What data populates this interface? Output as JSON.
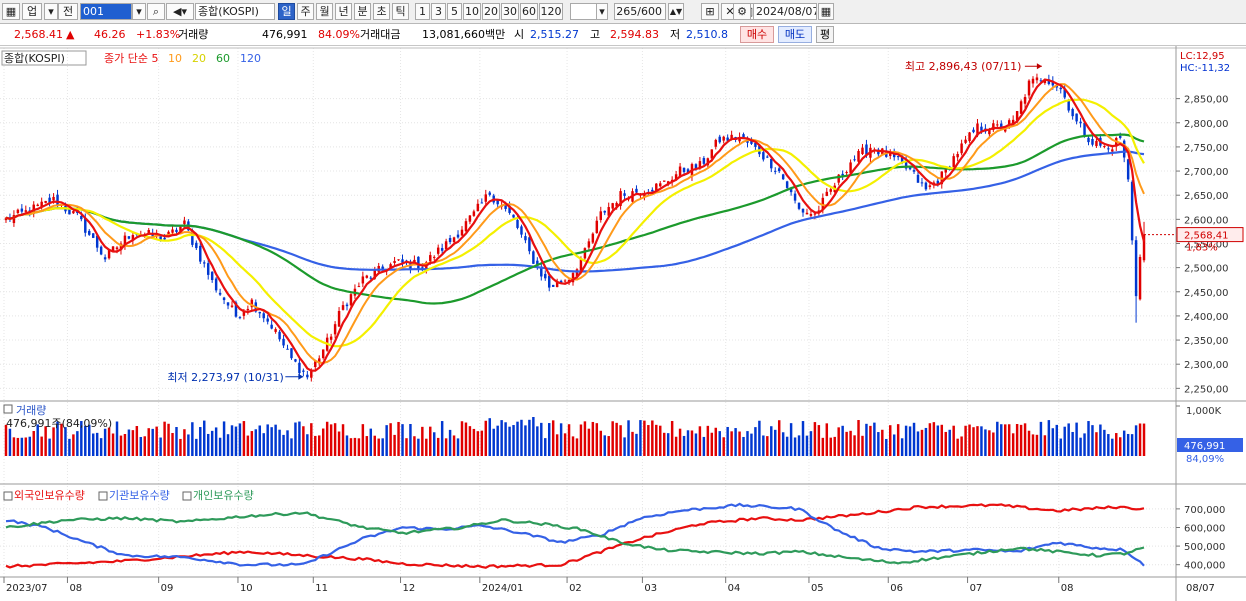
{
  "toolbar": {
    "market_label": "업",
    "prev_label": "전",
    "code_value": "001",
    "name_value": "종합(KOSPI)",
    "period_tabs": [
      {
        "label": "일",
        "selected": true
      },
      {
        "label": "주",
        "selected": false
      },
      {
        "label": "월",
        "selected": false
      },
      {
        "label": "년",
        "selected": false
      },
      {
        "label": "분",
        "selected": false
      },
      {
        "label": "초",
        "selected": false
      },
      {
        "label": "틱",
        "selected": false
      }
    ],
    "interval_buttons": [
      "1",
      "3",
      "5",
      "10",
      "20",
      "30",
      "60",
      "120"
    ],
    "count_value": "265/600",
    "date_value": "2024/08/07"
  },
  "quote": {
    "price": "2,568.41",
    "arrow": "▲",
    "change": "46.26",
    "change_pct": "+1.83%",
    "volume_label": "거래량",
    "volume": "476,991",
    "volume_ratio": "84.09%",
    "amount_label": "거래대금",
    "amount": "13,081,660백만",
    "open_label": "시",
    "open": "2,515.27",
    "high_label": "고",
    "high": "2,594.83",
    "low_label": "저",
    "low": "2,510.8",
    "buy_label": "매수",
    "sell_label": "매도",
    "eval_label": "평"
  },
  "colors": {
    "up": "#e00000",
    "down": "#0037d0",
    "ma5": "#e81010",
    "ma10": "#ff9a1a",
    "ma20": "#f4f000",
    "ma60": "#1c9a2c",
    "ma120": "#3561e6",
    "foreign": "#e81010",
    "institution": "#3561e6",
    "individual": "#2e9a5a"
  },
  "chart_data": [
    {
      "type": "candlestick",
      "name": "종합(KOSPI)",
      "legend": [
        {
          "label": "종합(KOSPI)"
        },
        {
          "label": "종가 단순 5",
          "color": "#e81010"
        },
        {
          "label": "10",
          "color": "#ff9a1a"
        },
        {
          "label": "20",
          "color": "#d6d200"
        },
        {
          "label": "60",
          "color": "#1c9a2c"
        },
        {
          "label": "120",
          "color": "#3561e6"
        }
      ],
      "ylim": [
        2230,
        2930
      ],
      "y_ticks": [
        "2,850,00",
        "2,800,00",
        "2,750,00",
        "2,700,00",
        "2,650,00",
        "2,600,00",
        "2,550,00",
        "2,500,00",
        "2,450,00",
        "2,400,00",
        "2,350,00",
        "2,300,00",
        "2,250,00"
      ],
      "y_tick_values": [
        2850,
        2800,
        2750,
        2700,
        2650,
        2600,
        2550,
        2500,
        2450,
        2400,
        2350,
        2300,
        2250
      ],
      "lc": "LC:12,95",
      "hc": "HC:-11,32",
      "last_price": "2,568,41",
      "last_change_pct": "1,83%",
      "high_annotation": "최고 2,896,43 (07/11)",
      "low_annotation": "최저 2,273,97 (10/31)",
      "high_value": 2896.43,
      "low_value": 2273.97,
      "anchors": [
        {
          "t": 0,
          "v": 2600
        },
        {
          "t": 5,
          "v": 2615
        },
        {
          "t": 12,
          "v": 2640
        },
        {
          "t": 18,
          "v": 2605
        },
        {
          "t": 25,
          "v": 2520
        },
        {
          "t": 32,
          "v": 2575
        },
        {
          "t": 40,
          "v": 2560
        },
        {
          "t": 45,
          "v": 2590
        },
        {
          "t": 52,
          "v": 2470
        },
        {
          "t": 58,
          "v": 2400
        },
        {
          "t": 62,
          "v": 2430
        },
        {
          "t": 67,
          "v": 2380
        },
        {
          "t": 72,
          "v": 2310
        },
        {
          "t": 76,
          "v": 2274
        },
        {
          "t": 81,
          "v": 2345
        },
        {
          "t": 85,
          "v": 2420
        },
        {
          "t": 90,
          "v": 2475
        },
        {
          "t": 98,
          "v": 2510
        },
        {
          "t": 105,
          "v": 2505
        },
        {
          "t": 112,
          "v": 2555
        },
        {
          "t": 118,
          "v": 2610
        },
        {
          "t": 122,
          "v": 2655
        },
        {
          "t": 128,
          "v": 2600
        },
        {
          "t": 132,
          "v": 2530
        },
        {
          "t": 137,
          "v": 2460
        },
        {
          "t": 142,
          "v": 2480
        },
        {
          "t": 146,
          "v": 2530
        },
        {
          "t": 150,
          "v": 2610
        },
        {
          "t": 155,
          "v": 2650
        },
        {
          "t": 160,
          "v": 2660
        },
        {
          "t": 165,
          "v": 2670
        },
        {
          "t": 170,
          "v": 2700
        },
        {
          "t": 175,
          "v": 2710
        },
        {
          "t": 180,
          "v": 2765
        },
        {
          "t": 185,
          "v": 2770
        },
        {
          "t": 190,
          "v": 2740
        },
        {
          "t": 195,
          "v": 2700
        },
        {
          "t": 200,
          "v": 2620
        },
        {
          "t": 204,
          "v": 2610
        },
        {
          "t": 208,
          "v": 2660
        },
        {
          "t": 213,
          "v": 2720
        },
        {
          "t": 218,
          "v": 2750
        },
        {
          "t": 223,
          "v": 2730
        },
        {
          "t": 228,
          "v": 2700
        },
        {
          "t": 232,
          "v": 2660
        },
        {
          "t": 236,
          "v": 2690
        },
        {
          "t": 240,
          "v": 2740
        },
        {
          "t": 245,
          "v": 2790
        },
        {
          "t": 250,
          "v": 2790
        },
        {
          "t": 254,
          "v": 2800
        },
        {
          "t": 258,
          "v": 2880
        },
        {
          "t": 262,
          "v": 2896
        },
        {
          "t": 266,
          "v": 2870
        },
        {
          "t": 270,
          "v": 2800
        },
        {
          "t": 274,
          "v": 2760
        },
        {
          "t": 278,
          "v": 2745
        },
        {
          "t": 281,
          "v": 2770
        },
        {
          "t": 283,
          "v": 2680
        },
        {
          "t": 285,
          "v": 2441
        },
        {
          "t": 286,
          "v": 2522
        },
        {
          "t": 287,
          "v": 2568
        }
      ]
    },
    {
      "type": "bar",
      "name": "거래량",
      "label": "거래량",
      "current": "476,991주(84,09%)",
      "ylim": [
        0,
        1000000
      ],
      "y_ticks": [
        "1,000K"
      ],
      "last_value": "476,991",
      "last_ratio": "84,09%"
    },
    {
      "type": "line",
      "name": "보유수량",
      "ylim": [
        350000,
        780000
      ],
      "y_ticks": [
        "700,000",
        "600,000",
        "500,000",
        "400,000"
      ],
      "y_tick_values": [
        700000,
        600000,
        500000,
        400000
      ],
      "series": [
        {
          "name": "외국인보유수량",
          "color": "#e81010",
          "anchors": [
            [
              0,
              390000
            ],
            [
              30,
              420000
            ],
            [
              60,
              470000
            ],
            [
              90,
              430000
            ],
            [
              100,
              405000
            ],
            [
              120,
              390000
            ],
            [
              140,
              400000
            ],
            [
              150,
              470000
            ],
            [
              160,
              540000
            ],
            [
              175,
              620000
            ],
            [
              190,
              650000
            ],
            [
              200,
              640000
            ],
            [
              215,
              670000
            ],
            [
              230,
              710000
            ],
            [
              250,
              720000
            ],
            [
              265,
              690000
            ],
            [
              280,
              710000
            ],
            [
              287,
              700000
            ]
          ]
        },
        {
          "name": "기관보유수량",
          "color": "#3561e6",
          "anchors": [
            [
              0,
              640000
            ],
            [
              10,
              600000
            ],
            [
              20,
              520000
            ],
            [
              30,
              450000
            ],
            [
              45,
              440000
            ],
            [
              60,
              400000
            ],
            [
              75,
              400000
            ],
            [
              90,
              540000
            ],
            [
              100,
              600000
            ],
            [
              110,
              590000
            ],
            [
              120,
              610000
            ],
            [
              130,
              570000
            ],
            [
              140,
              520000
            ],
            [
              150,
              560000
            ],
            [
              160,
              650000
            ],
            [
              170,
              690000
            ],
            [
              185,
              720000
            ],
            [
              200,
              700000
            ],
            [
              210,
              580000
            ],
            [
              220,
              490000
            ],
            [
              230,
              470000
            ],
            [
              245,
              480000
            ],
            [
              255,
              470000
            ],
            [
              265,
              520000
            ],
            [
              275,
              490000
            ],
            [
              282,
              480000
            ],
            [
              287,
              400000
            ]
          ]
        },
        {
          "name": "개인보유수량",
          "color": "#2e9a5a",
          "anchors": [
            [
              0,
              600000
            ],
            [
              15,
              640000
            ],
            [
              30,
              650000
            ],
            [
              45,
              630000
            ],
            [
              60,
              660000
            ],
            [
              75,
              680000
            ],
            [
              90,
              600000
            ],
            [
              100,
              570000
            ],
            [
              115,
              600000
            ],
            [
              125,
              640000
            ],
            [
              135,
              620000
            ],
            [
              145,
              590000
            ],
            [
              155,
              520000
            ],
            [
              165,
              480000
            ],
            [
              175,
              470000
            ],
            [
              190,
              460000
            ],
            [
              200,
              470000
            ],
            [
              215,
              430000
            ],
            [
              225,
              410000
            ],
            [
              240,
              450000
            ],
            [
              255,
              490000
            ],
            [
              265,
              470000
            ],
            [
              275,
              450000
            ],
            [
              282,
              460000
            ],
            [
              287,
              490000
            ]
          ]
        }
      ]
    }
  ],
  "x_axis": {
    "labels": [
      {
        "label": "2023/07",
        "t": 0
      },
      {
        "label": "08",
        "t": 16
      },
      {
        "label": "09",
        "t": 39
      },
      {
        "label": "10",
        "t": 59
      },
      {
        "label": "11",
        "t": 78
      },
      {
        "label": "12",
        "t": 100
      },
      {
        "label": "2024/01",
        "t": 120
      },
      {
        "label": "02",
        "t": 142
      },
      {
        "label": "03",
        "t": 161
      },
      {
        "label": "04",
        "t": 182
      },
      {
        "label": "05",
        "t": 203
      },
      {
        "label": "06",
        "t": 223
      },
      {
        "label": "07",
        "t": 243
      },
      {
        "label": "08",
        "t": 266
      }
    ],
    "last_date": "08/07"
  },
  "sub_legend": [
    {
      "label": "외국인보유수량",
      "color": "#e81010"
    },
    {
      "label": "기관보유수량",
      "color": "#3561e6"
    },
    {
      "label": "개인보유수량",
      "color": "#2e9a5a"
    }
  ]
}
